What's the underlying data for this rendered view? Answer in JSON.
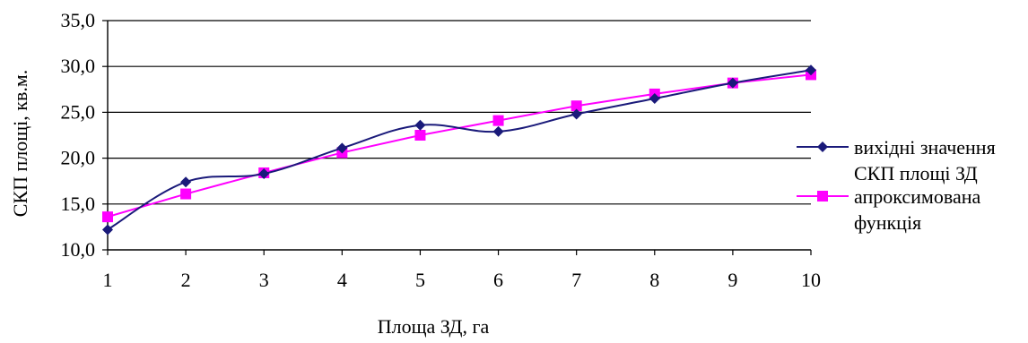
{
  "chart_data": {
    "type": "line",
    "xlabel": "Площа ЗД, га",
    "ylabel": "СКП площі, кв.м.",
    "x": [
      1,
      2,
      3,
      4,
      5,
      6,
      7,
      8,
      9,
      10
    ],
    "x_tick_labels": [
      "1",
      "2",
      "3",
      "4",
      "5",
      "6",
      "7",
      "8",
      "9",
      "10"
    ],
    "ylim": [
      10,
      35
    ],
    "y_ticks": [
      10,
      15,
      20,
      25,
      30,
      35
    ],
    "y_tick_labels": [
      "10,0",
      "15,0",
      "20,0",
      "25,0",
      "30,0",
      "35,0"
    ],
    "grid": "horizontal",
    "legend_position": "right",
    "series": [
      {
        "name": "вихідні значення СКП площі ЗД",
        "legend_lines": [
          "вихідні значення",
          "СКП площі ЗД"
        ],
        "color": "#1a1a7a",
        "marker": "diamond",
        "smooth": true,
        "values": [
          12.2,
          17.4,
          18.3,
          21.1,
          23.6,
          22.9,
          24.8,
          26.5,
          28.2,
          29.6
        ]
      },
      {
        "name": "апроксимована функція",
        "legend_lines": [
          "апроксимована",
          "функція"
        ],
        "color": "#ff00ff",
        "marker": "square",
        "smooth": false,
        "values": [
          13.6,
          16.1,
          18.4,
          20.6,
          22.5,
          24.1,
          25.7,
          27.0,
          28.2,
          29.1
        ]
      }
    ]
  }
}
